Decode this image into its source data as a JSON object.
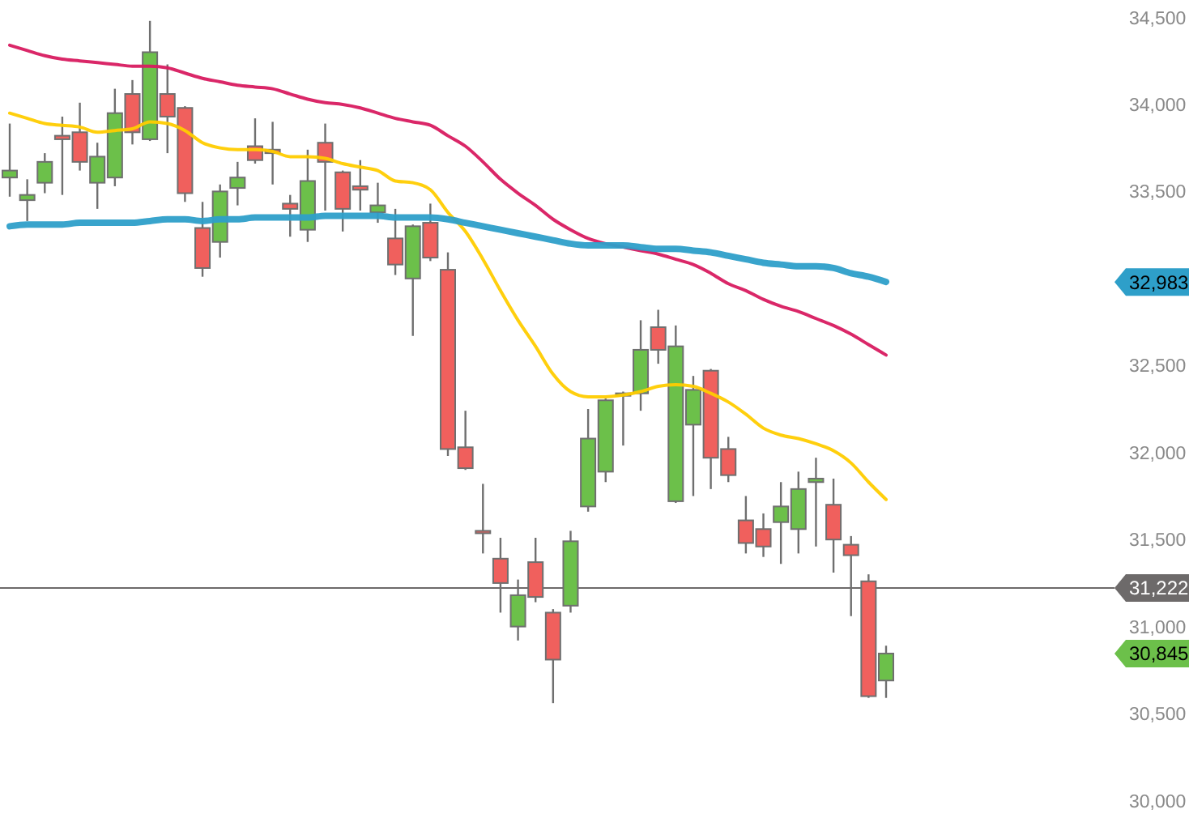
{
  "chart_data": {
    "type": "candlestick",
    "categories": [
      null,
      null,
      null,
      null,
      null,
      null,
      null,
      null,
      null,
      null,
      null,
      null,
      null,
      null,
      null,
      null,
      null,
      null,
      null,
      null,
      null,
      null,
      null,
      null,
      null,
      null,
      null,
      null,
      null,
      null,
      null,
      null,
      null,
      null,
      null,
      null,
      null,
      null,
      null,
      null,
      null,
      null,
      null,
      null,
      null,
      null,
      null,
      null,
      null,
      null,
      null
    ],
    "ohlc": [
      [
        33580,
        33890,
        33470,
        33620
      ],
      [
        33450,
        33570,
        33330,
        33480
      ],
      [
        33550,
        33720,
        33490,
        33670
      ],
      [
        33820,
        33930,
        33480,
        33800
      ],
      [
        33840,
        34010,
        33620,
        33670
      ],
      [
        33550,
        33780,
        33400,
        33700
      ],
      [
        33580,
        34090,
        33530,
        33950
      ],
      [
        34060,
        34140,
        33770,
        33840
      ],
      [
        33800,
        34480,
        33790,
        34300
      ],
      [
        34060,
        34230,
        33720,
        33930
      ],
      [
        33980,
        33990,
        33440,
        33490
      ],
      [
        33290,
        33440,
        33010,
        33060
      ],
      [
        33210,
        33540,
        33120,
        33500
      ],
      [
        33520,
        33670,
        33420,
        33580
      ],
      [
        33760,
        33920,
        33660,
        33680
      ],
      [
        33740,
        33900,
        33540,
        33720
      ],
      [
        33430,
        33480,
        33240,
        33400
      ],
      [
        33280,
        33740,
        33210,
        33560
      ],
      [
        33780,
        33890,
        33390,
        33670
      ],
      [
        33610,
        33620,
        33270,
        33400
      ],
      [
        33530,
        33680,
        33390,
        33510
      ],
      [
        33380,
        33550,
        33320,
        33420
      ],
      [
        33230,
        33400,
        33020,
        33080
      ],
      [
        33000,
        33310,
        32670,
        33300
      ],
      [
        33320,
        33430,
        33100,
        33120
      ],
      [
        33050,
        33150,
        31980,
        32020
      ],
      [
        32030,
        32240,
        31900,
        31910
      ],
      [
        31550,
        31820,
        31420,
        31540
      ],
      [
        31390,
        31510,
        31080,
        31250
      ],
      [
        31000,
        31270,
        30920,
        31180
      ],
      [
        31370,
        31510,
        31140,
        31170
      ],
      [
        31080,
        31100,
        30560,
        30810
      ],
      [
        31120,
        31550,
        31080,
        31490
      ],
      [
        31690,
        32250,
        31660,
        32080
      ],
      [
        31890,
        32310,
        31830,
        32300
      ],
      [
        32330,
        32350,
        32040,
        32340
      ],
      [
        32340,
        32760,
        32240,
        32590
      ],
      [
        32720,
        32820,
        32510,
        32590
      ],
      [
        31720,
        32730,
        31710,
        32610
      ],
      [
        32160,
        32440,
        31750,
        32360
      ],
      [
        32470,
        32480,
        31790,
        31970
      ],
      [
        32020,
        32090,
        31830,
        31870
      ],
      [
        31610,
        31750,
        31420,
        31480
      ],
      [
        31560,
        31650,
        31400,
        31460
      ],
      [
        31600,
        31830,
        31360,
        31690
      ],
      [
        31560,
        31890,
        31420,
        31790
      ],
      [
        31830,
        31970,
        31460,
        31850
      ],
      [
        31700,
        31850,
        31310,
        31500
      ],
      [
        31470,
        31520,
        31060,
        31410
      ],
      [
        31260,
        31300,
        30590,
        30600
      ],
      [
        30690,
        30890,
        30590,
        30845
      ]
    ],
    "colors": [
      "#6cc04a",
      "#6cc04a",
      "#6cc04a",
      "#f0605d",
      "#f0605d",
      "#6cc04a",
      "#6cc04a",
      "#f0605d",
      "#6cc04a",
      "#f0605d",
      "#f0605d",
      "#f0605d",
      "#6cc04a",
      "#6cc04a",
      "#f0605d",
      "#f0605d",
      "#f0605d",
      "#6cc04a",
      "#f0605d",
      "#f0605d",
      "#f0605d",
      "#6cc04a",
      "#f0605d",
      "#6cc04a",
      "#f0605d",
      "#f0605d",
      "#f0605d",
      "#f0605d",
      "#f0605d",
      "#6cc04a",
      "#f0605d",
      "#f0605d",
      "#6cc04a",
      "#6cc04a",
      "#6cc04a",
      "#6cc04a",
      "#6cc04a",
      "#f0605d",
      "#6cc04a",
      "#6cc04a",
      "#f0605d",
      "#f0605d",
      "#f0605d",
      "#f0605d",
      "#6cc04a",
      "#6cc04a",
      "#6cc04a",
      "#f0605d",
      "#f0605d",
      "#f0605d",
      "#6cc04a"
    ],
    "series": [
      {
        "type": "line",
        "color": "#d81b60",
        "values": [
          34340,
          34310,
          34280,
          34260,
          34250,
          34240,
          34230,
          34220,
          34220,
          34210,
          34180,
          34150,
          34130,
          34110,
          34100,
          34090,
          34060,
          34030,
          34010,
          34000,
          33980,
          33950,
          33920,
          33900,
          33880,
          33820,
          33760,
          33670,
          33570,
          33490,
          33420,
          33340,
          33280,
          33230,
          33200,
          33180,
          33160,
          33140,
          33110,
          33080,
          33030,
          32970,
          32930,
          32880,
          32840,
          32810,
          32770,
          32730,
          32680,
          32620,
          32560
        ]
      },
      {
        "type": "line",
        "color": "#ffcc00",
        "values": [
          33950,
          33920,
          33890,
          33880,
          33870,
          33840,
          33850,
          33860,
          33900,
          33890,
          33850,
          33780,
          33750,
          33740,
          33740,
          33730,
          33700,
          33700,
          33690,
          33660,
          33640,
          33620,
          33560,
          33550,
          33510,
          33380,
          33270,
          33110,
          32930,
          32760,
          32610,
          32450,
          32350,
          32320,
          32320,
          32330,
          32350,
          32380,
          32390,
          32380,
          32340,
          32290,
          32220,
          32140,
          32100,
          32080,
          32050,
          32010,
          31940,
          31830,
          31730
        ]
      },
      {
        "type": "line",
        "color": "#2e9fc9",
        "values": [
          33300,
          33310,
          33310,
          33310,
          33320,
          33320,
          33320,
          33320,
          33330,
          33340,
          33340,
          33330,
          33340,
          33340,
          33350,
          33350,
          33350,
          33350,
          33360,
          33360,
          33360,
          33360,
          33350,
          33350,
          33350,
          33340,
          33320,
          33300,
          33280,
          33260,
          33240,
          33220,
          33200,
          33190,
          33190,
          33190,
          33180,
          33170,
          33170,
          33160,
          33150,
          33130,
          33110,
          33090,
          33080,
          33070,
          33070,
          33060,
          33030,
          33010,
          32980
        ]
      }
    ],
    "ylim": [
      29900,
      34600
    ],
    "yticks": [
      {
        "value": 30000,
        "label": "30,000"
      },
      {
        "value": 30500,
        "label": "30,500"
      },
      {
        "value": 31000,
        "label": "31,000"
      },
      {
        "value": 31500,
        "label": "31,500"
      },
      {
        "value": 32000,
        "label": "32,000"
      },
      {
        "value": 32500,
        "label": "32,500"
      },
      {
        "value": 33500,
        "label": "33,500"
      },
      {
        "value": 34000,
        "label": "34,000"
      },
      {
        "value": 34500,
        "label": "34,500"
      }
    ],
    "tick_labels": "y",
    "ref_lines": [
      {
        "axis": "y",
        "value": 31222,
        "label": "31,222",
        "color": "#6d6a6a"
      }
    ],
    "annotations": [
      "32,983",
      "30,845"
    ]
  }
}
